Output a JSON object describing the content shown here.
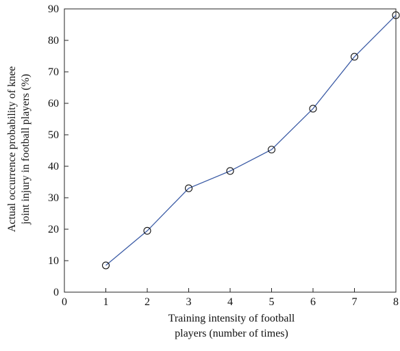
{
  "chart_data": {
    "type": "line",
    "title": "",
    "xlabel": [
      "Training intensity of football",
      "players (number of times)"
    ],
    "ylabel": [
      "Actual occurrence probability of knee",
      "joint injury in football players (%)"
    ],
    "xlim": [
      0,
      8
    ],
    "ylim": [
      0,
      90
    ],
    "xticks": [
      "0",
      "1",
      "2",
      "3",
      "4",
      "5",
      "6",
      "7",
      "8"
    ],
    "yticks": [
      "0",
      "10",
      "20",
      "30",
      "40",
      "50",
      "60",
      "70",
      "80",
      "90"
    ],
    "grid": false,
    "legend": "none",
    "series": [
      {
        "x": [
          1,
          2,
          3,
          4,
          5,
          6,
          7,
          8
        ],
        "values": [
          8.5,
          19.5,
          33,
          38.5,
          45.3,
          58.3,
          74.8,
          88
        ],
        "color": "#3b5ba5",
        "marker": "open-circle"
      }
    ]
  }
}
